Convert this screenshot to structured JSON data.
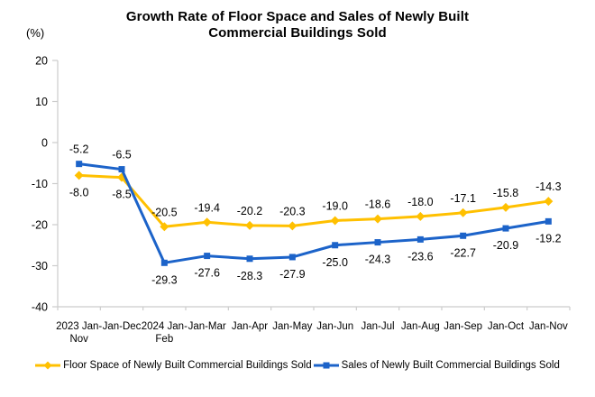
{
  "chart_data": {
    "type": "line",
    "title": "Growth Rate of Floor Space and Sales of Newly Built Commercial Buildings Sold",
    "title_lines": [
      "Growth Rate of Floor Space and Sales of Newly Built",
      "Commercial Buildings Sold"
    ],
    "unit": "(%)",
    "xlabel": "",
    "ylabel": "(%)",
    "ylim": [
      -40,
      20
    ],
    "ytick_interval": 10,
    "yticks": [
      "20",
      "10",
      "0",
      "-10",
      "-20",
      "-30",
      "-40"
    ],
    "grid": false,
    "legend_position": "bottom",
    "axis_color": "#cccccc",
    "categories": [
      [
        "2023 Jan-",
        "Nov"
      ],
      [
        "Jan-Dec"
      ],
      [
        "2024 Jan-",
        "Feb"
      ],
      [
        "Jan-Mar"
      ],
      [
        "Jan-Apr"
      ],
      [
        "Jan-May"
      ],
      [
        "Jan-Jun"
      ],
      [
        "Jan-Jul"
      ],
      [
        "Jan-Aug"
      ],
      [
        "Jan-Sep"
      ],
      [
        "Jan-Oct"
      ],
      [
        "Jan-Nov"
      ]
    ],
    "series": [
      {
        "name": "Floor Space of Newly Built Commercial Buildings Sold",
        "color": "#FFC000",
        "marker": "diamond",
        "values": [
          -8.0,
          -8.5,
          -20.5,
          -19.4,
          -20.2,
          -20.3,
          -19.0,
          -18.6,
          -18.0,
          -17.1,
          -15.8,
          -14.3
        ],
        "labels": [
          "-8.0",
          "-8.5",
          "-20.5",
          "-19.4",
          "-20.2",
          "-20.3",
          "-19.0",
          "-18.6",
          "-18.0",
          "-17.1",
          "-15.8",
          "-14.3"
        ],
        "label_positions": [
          "below",
          "below",
          "above",
          "above",
          "above",
          "above",
          "above",
          "above",
          "above",
          "above",
          "above",
          "above"
        ]
      },
      {
        "name": "Sales of Newly Built Commercial Buildings Sold",
        "color": "#1C63C9",
        "marker": "square",
        "values": [
          -5.2,
          -6.5,
          -29.3,
          -27.6,
          -28.3,
          -27.9,
          -25.0,
          -24.3,
          -23.6,
          -22.7,
          -20.9,
          -19.2
        ],
        "labels": [
          "-5.2",
          "-6.5",
          "-29.3",
          "-27.6",
          "-28.3",
          "-27.9",
          "-25.0",
          "-24.3",
          "-23.6",
          "-22.7",
          "-20.9",
          "-19.2"
        ],
        "label_positions": [
          "above",
          "above",
          "below",
          "below",
          "below",
          "below",
          "below",
          "below",
          "below",
          "below",
          "below",
          "below"
        ]
      }
    ]
  }
}
